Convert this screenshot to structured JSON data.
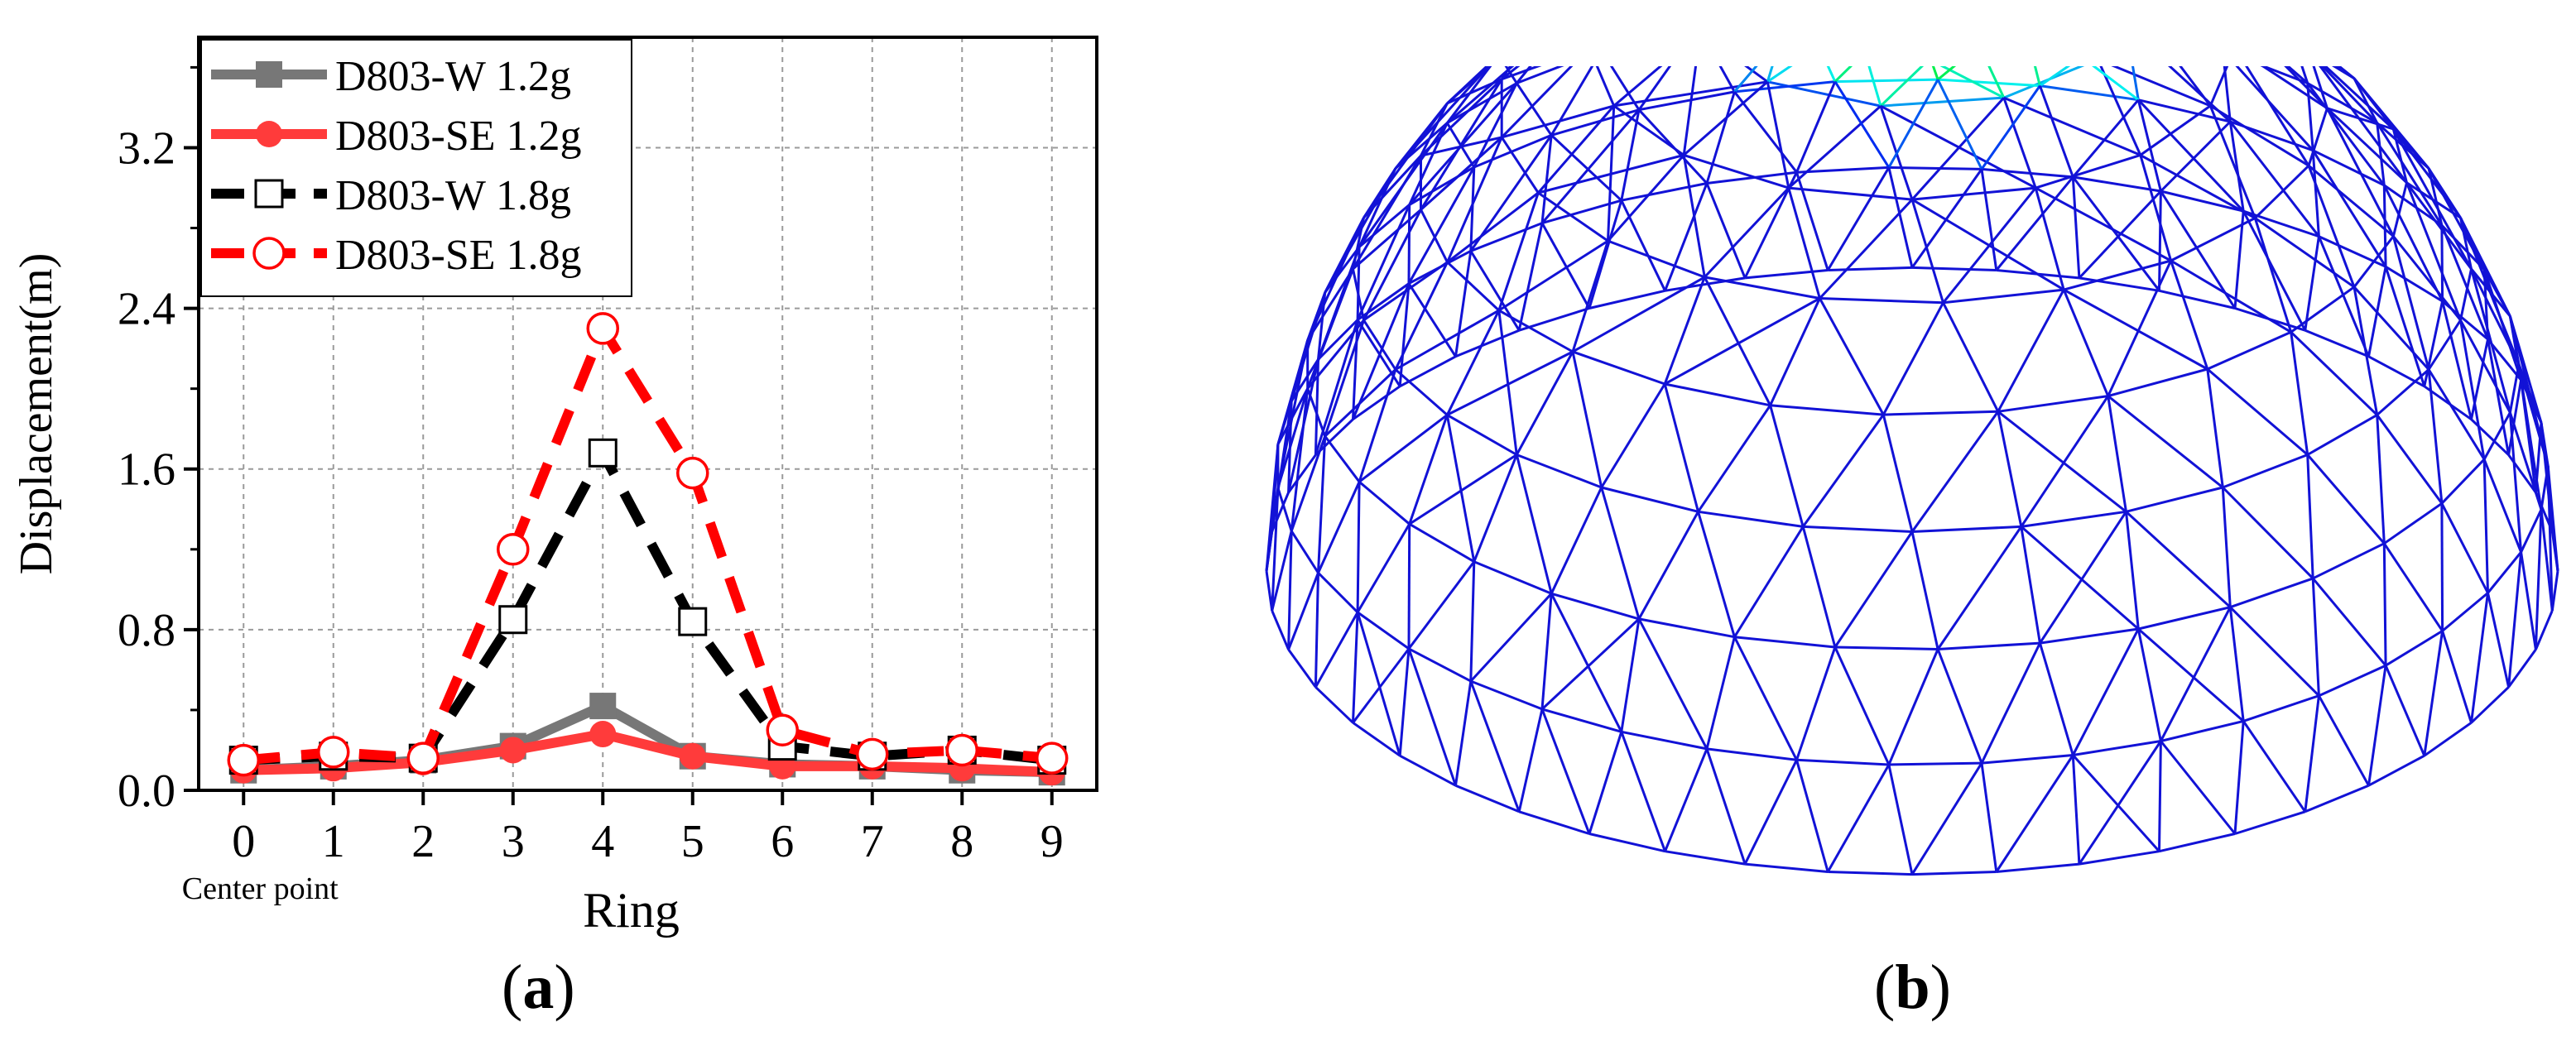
{
  "figure": {
    "panel_a_label": {
      "open": "(",
      "letter": "a",
      "close": ")"
    },
    "panel_b_label": {
      "open": "(",
      "letter": "b",
      "close": ")"
    }
  },
  "chart_data": {
    "type": "line",
    "title": "",
    "xlabel": "Ring",
    "ylabel": "Displacement(m)",
    "x": [
      0,
      1,
      2,
      3,
      4,
      5,
      6,
      7,
      8,
      9
    ],
    "x_tick_labels": [
      "0",
      "1",
      "2",
      "3",
      "4",
      "5",
      "6",
      "7",
      "8",
      "9"
    ],
    "x_annotation": "Center point",
    "xlim": [
      -0.5,
      9.5
    ],
    "ylim": [
      0,
      3.75
    ],
    "y_ticks": [
      0.0,
      0.8,
      1.6,
      2.4,
      3.2
    ],
    "y_tick_labels": [
      "0.0",
      "0.8",
      "1.6",
      "2.4",
      "3.2"
    ],
    "grid": true,
    "legend_position": "top-left",
    "series": [
      {
        "name": "D803-W 1.2g",
        "color": "#777777",
        "line": "solid",
        "marker": "filled-square",
        "values": [
          0.1,
          0.12,
          0.15,
          0.22,
          0.42,
          0.17,
          0.13,
          0.12,
          0.1,
          0.09
        ]
      },
      {
        "name": "D803-SE 1.2g",
        "color": "#ff3b3b",
        "line": "solid",
        "marker": "filled-circle",
        "values": [
          0.1,
          0.11,
          0.14,
          0.2,
          0.28,
          0.17,
          0.12,
          0.12,
          0.11,
          0.09
        ]
      },
      {
        "name": "D803-W 1.8g",
        "color": "#000000",
        "line": "dashed",
        "marker": "open-square",
        "values": [
          0.15,
          0.17,
          0.16,
          0.85,
          1.68,
          0.84,
          0.22,
          0.17,
          0.2,
          0.15
        ]
      },
      {
        "name": "D803-SE 1.8g",
        "color": "#ff0000",
        "line": "dashed",
        "marker": "open-circle",
        "values": [
          0.15,
          0.19,
          0.16,
          1.2,
          2.3,
          1.58,
          0.3,
          0.18,
          0.2,
          0.16
        ]
      }
    ]
  }
}
